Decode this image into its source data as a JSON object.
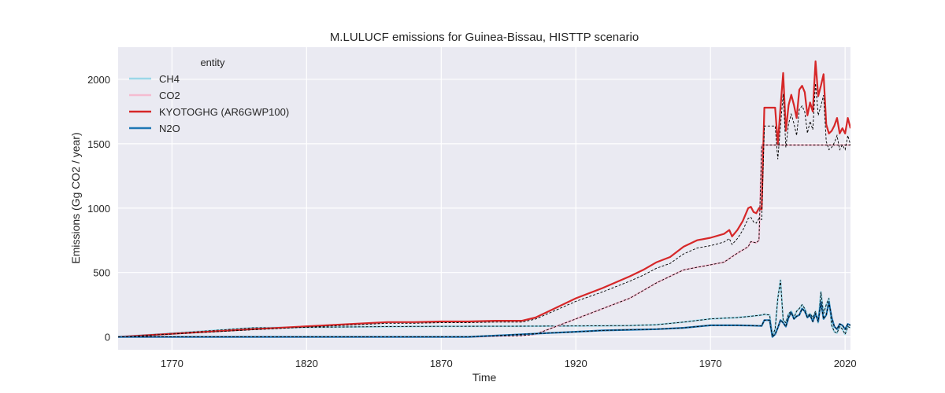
{
  "chart_data": {
    "type": "line",
    "title": "M.LULUCF emissions for Guinea-Bissau, HISTTP scenario",
    "xlabel": "Time",
    "ylabel": "Emissions (Gg CO2 / year)",
    "xlim": [
      1750,
      2022
    ],
    "ylim": [
      -100,
      2250
    ],
    "xticks": [
      1770,
      1820,
      1870,
      1920,
      1970,
      2020
    ],
    "yticks": [
      0,
      500,
      1000,
      1500,
      2000
    ],
    "grid": true,
    "legend": {
      "title": "entity",
      "placement": "top-left"
    },
    "background": "#eaeaf2",
    "series": [
      {
        "name": "CH4",
        "color": "#9bd7e8",
        "x": [
          1750,
          1800,
          1850,
          1870,
          1900,
          1920,
          1940,
          1950,
          1960,
          1970,
          1980,
          1985,
          1989,
          1990,
          1992,
          1993,
          1994,
          1995,
          1996,
          1997,
          1998,
          1999,
          2000,
          2001,
          2002,
          2003,
          2004,
          2005,
          2006,
          2007,
          2008,
          2009,
          2010,
          2011,
          2012,
          2013,
          2014,
          2015,
          2016,
          2017,
          2018,
          2019,
          2020,
          2021,
          2022
        ],
        "values": [
          0,
          70,
          80,
          82,
          83,
          85,
          88,
          95,
          115,
          140,
          150,
          160,
          170,
          175,
          170,
          10,
          60,
          300,
          440,
          130,
          110,
          180,
          200,
          150,
          200,
          220,
          250,
          220,
          160,
          180,
          150,
          200,
          110,
          350,
          180,
          250,
          300,
          90,
          40,
          30,
          80,
          60,
          20,
          80,
          70
        ]
      },
      {
        "name": "CO2",
        "color": "#f5bcd0",
        "x": [
          1750,
          1800,
          1850,
          1880,
          1900,
          1905,
          1920,
          1940,
          1950,
          1960,
          1965,
          1970,
          1975,
          1980,
          1984,
          1985,
          1987,
          1988,
          1989,
          2022
        ],
        "values": [
          0,
          0,
          0,
          0,
          10,
          20,
          140,
          300,
          420,
          520,
          540,
          560,
          580,
          650,
          700,
          740,
          730,
          750,
          1490,
          1490
        ]
      },
      {
        "name": "KYOTOGHG (AR6GWP100)",
        "color": "#d62728",
        "x": [
          1750,
          1800,
          1850,
          1860,
          1870,
          1880,
          1890,
          1900,
          1905,
          1910,
          1920,
          1930,
          1940,
          1945,
          1950,
          1955,
          1960,
          1965,
          1970,
          1975,
          1977,
          1978,
          1980,
          1982,
          1984,
          1985,
          1986,
          1987,
          1988,
          1989,
          1990,
          1993,
          1994,
          1995,
          1996,
          1997,
          1998,
          1999,
          2000,
          2001,
          2002,
          2003,
          2004,
          2005,
          2006,
          2007,
          2008,
          2009,
          2010,
          2011,
          2012,
          2013,
          2014,
          2015,
          2016,
          2017,
          2018,
          2019,
          2020,
          2021,
          2022
        ],
        "values": [
          0,
          60,
          115,
          115,
          120,
          120,
          125,
          125,
          150,
          200,
          300,
          380,
          470,
          520,
          580,
          620,
          700,
          750,
          770,
          800,
          830,
          780,
          830,
          900,
          1000,
          1010,
          970,
          960,
          1000,
          990,
          1780,
          1780,
          1780,
          1500,
          1780,
          2050,
          1600,
          1800,
          1880,
          1800,
          1700,
          1920,
          1950,
          1900,
          1720,
          1820,
          1750,
          2140,
          1870,
          1950,
          2040,
          1650,
          1580,
          1600,
          1640,
          1700,
          1580,
          1620,
          1580,
          1700,
          1620
        ]
      },
      {
        "name": "N2O",
        "color": "#1f77b4",
        "x": [
          1750,
          1800,
          1850,
          1870,
          1880,
          1890,
          1900,
          1910,
          1920,
          1930,
          1940,
          1950,
          1960,
          1965,
          1970,
          1975,
          1980,
          1985,
          1989,
          1990,
          1992,
          1993,
          1994,
          1995,
          1996,
          1997,
          1998,
          1999,
          2000,
          2001,
          2002,
          2003,
          2004,
          2005,
          2006,
          2007,
          2008,
          2009,
          2010,
          2011,
          2012,
          2013,
          2014,
          2015,
          2016,
          2017,
          2018,
          2019,
          2020,
          2021,
          2022
        ],
        "values": [
          0,
          0,
          0,
          0,
          0,
          10,
          20,
          30,
          40,
          50,
          55,
          60,
          70,
          80,
          90,
          90,
          90,
          88,
          85,
          130,
          130,
          0,
          20,
          70,
          130,
          110,
          80,
          150,
          190,
          140,
          160,
          170,
          220,
          200,
          150,
          170,
          120,
          180,
          120,
          270,
          140,
          170,
          270,
          150,
          80,
          60,
          100,
          90,
          60,
          100,
          90
        ]
      }
    ]
  }
}
